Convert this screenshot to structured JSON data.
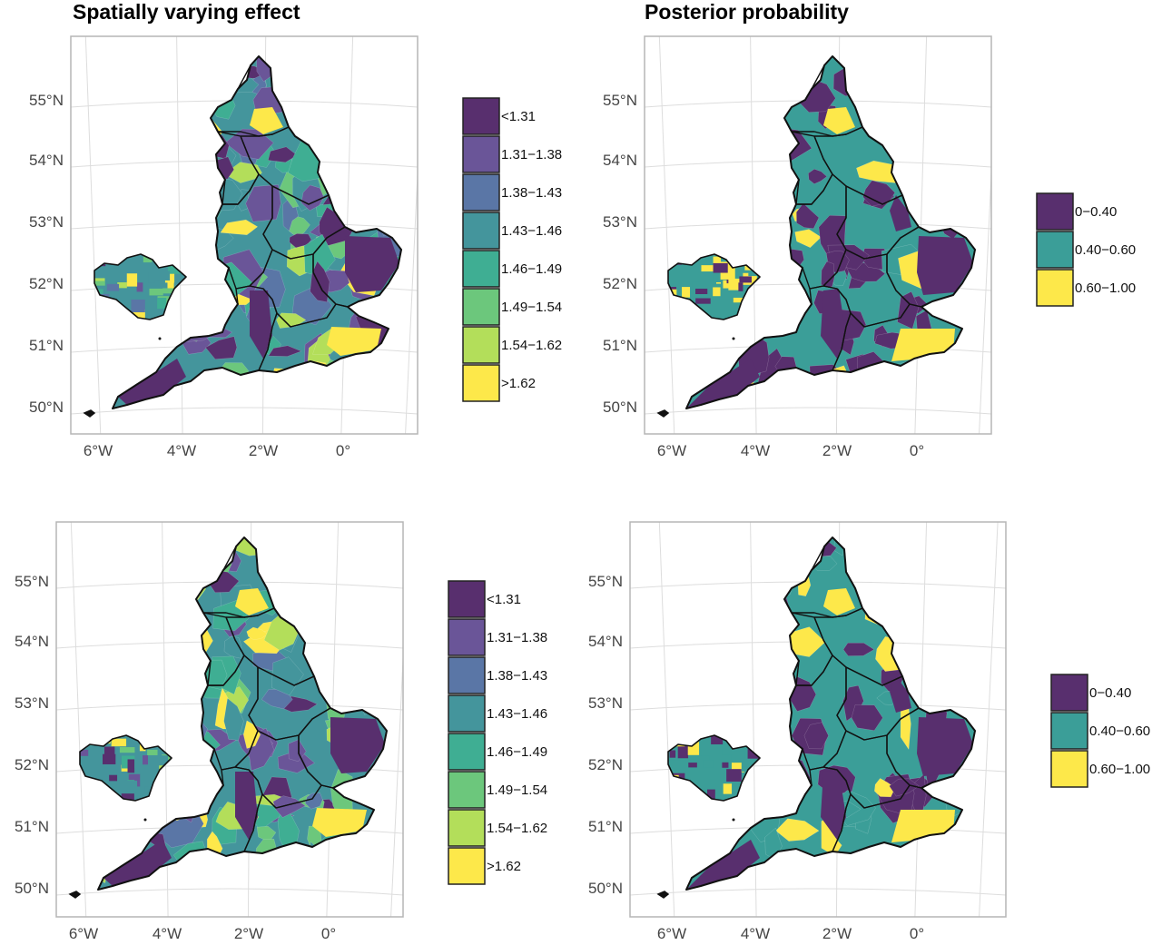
{
  "titles": {
    "left": "Spatially varying effect",
    "right": "Posterior probability"
  },
  "axes": {
    "lat_labels": [
      "55°N",
      "54°N",
      "53°N",
      "52°N",
      "51°N",
      "50°N"
    ],
    "lon_labels": [
      "6°W",
      "4°W",
      "2°W",
      "0°"
    ]
  },
  "legends": {
    "effect": {
      "entries": [
        {
          "label": "<1.31",
          "color": "#582f6e"
        },
        {
          "label": "1.31−1.38",
          "color": "#6a5598"
        },
        {
          "label": "1.38−1.43",
          "color": "#5a76a6"
        },
        {
          "label": "1.43−1.46",
          "color": "#44959c"
        },
        {
          "label": "1.46−1.49",
          "color": "#3fae93"
        },
        {
          "label": "1.49−1.54",
          "color": "#6cc77c"
        },
        {
          "label": "1.54−1.62",
          "color": "#b3de5a"
        },
        {
          "label": ">1.62",
          "color": "#fde84a"
        }
      ]
    },
    "probability": {
      "entries": [
        {
          "label": "0−0.40",
          "color": "#582f6e"
        },
        {
          "label": "0.40−0.60",
          "color": "#3b9e98"
        },
        {
          "label": "0.60−1.00",
          "color": "#fde84a"
        }
      ]
    }
  },
  "panels": [
    {
      "id": "top-left",
      "legend": "effect"
    },
    {
      "id": "top-right",
      "legend": "probability"
    },
    {
      "id": "bottom-left",
      "legend": "effect"
    },
    {
      "id": "bottom-right",
      "legend": "probability"
    }
  ]
}
